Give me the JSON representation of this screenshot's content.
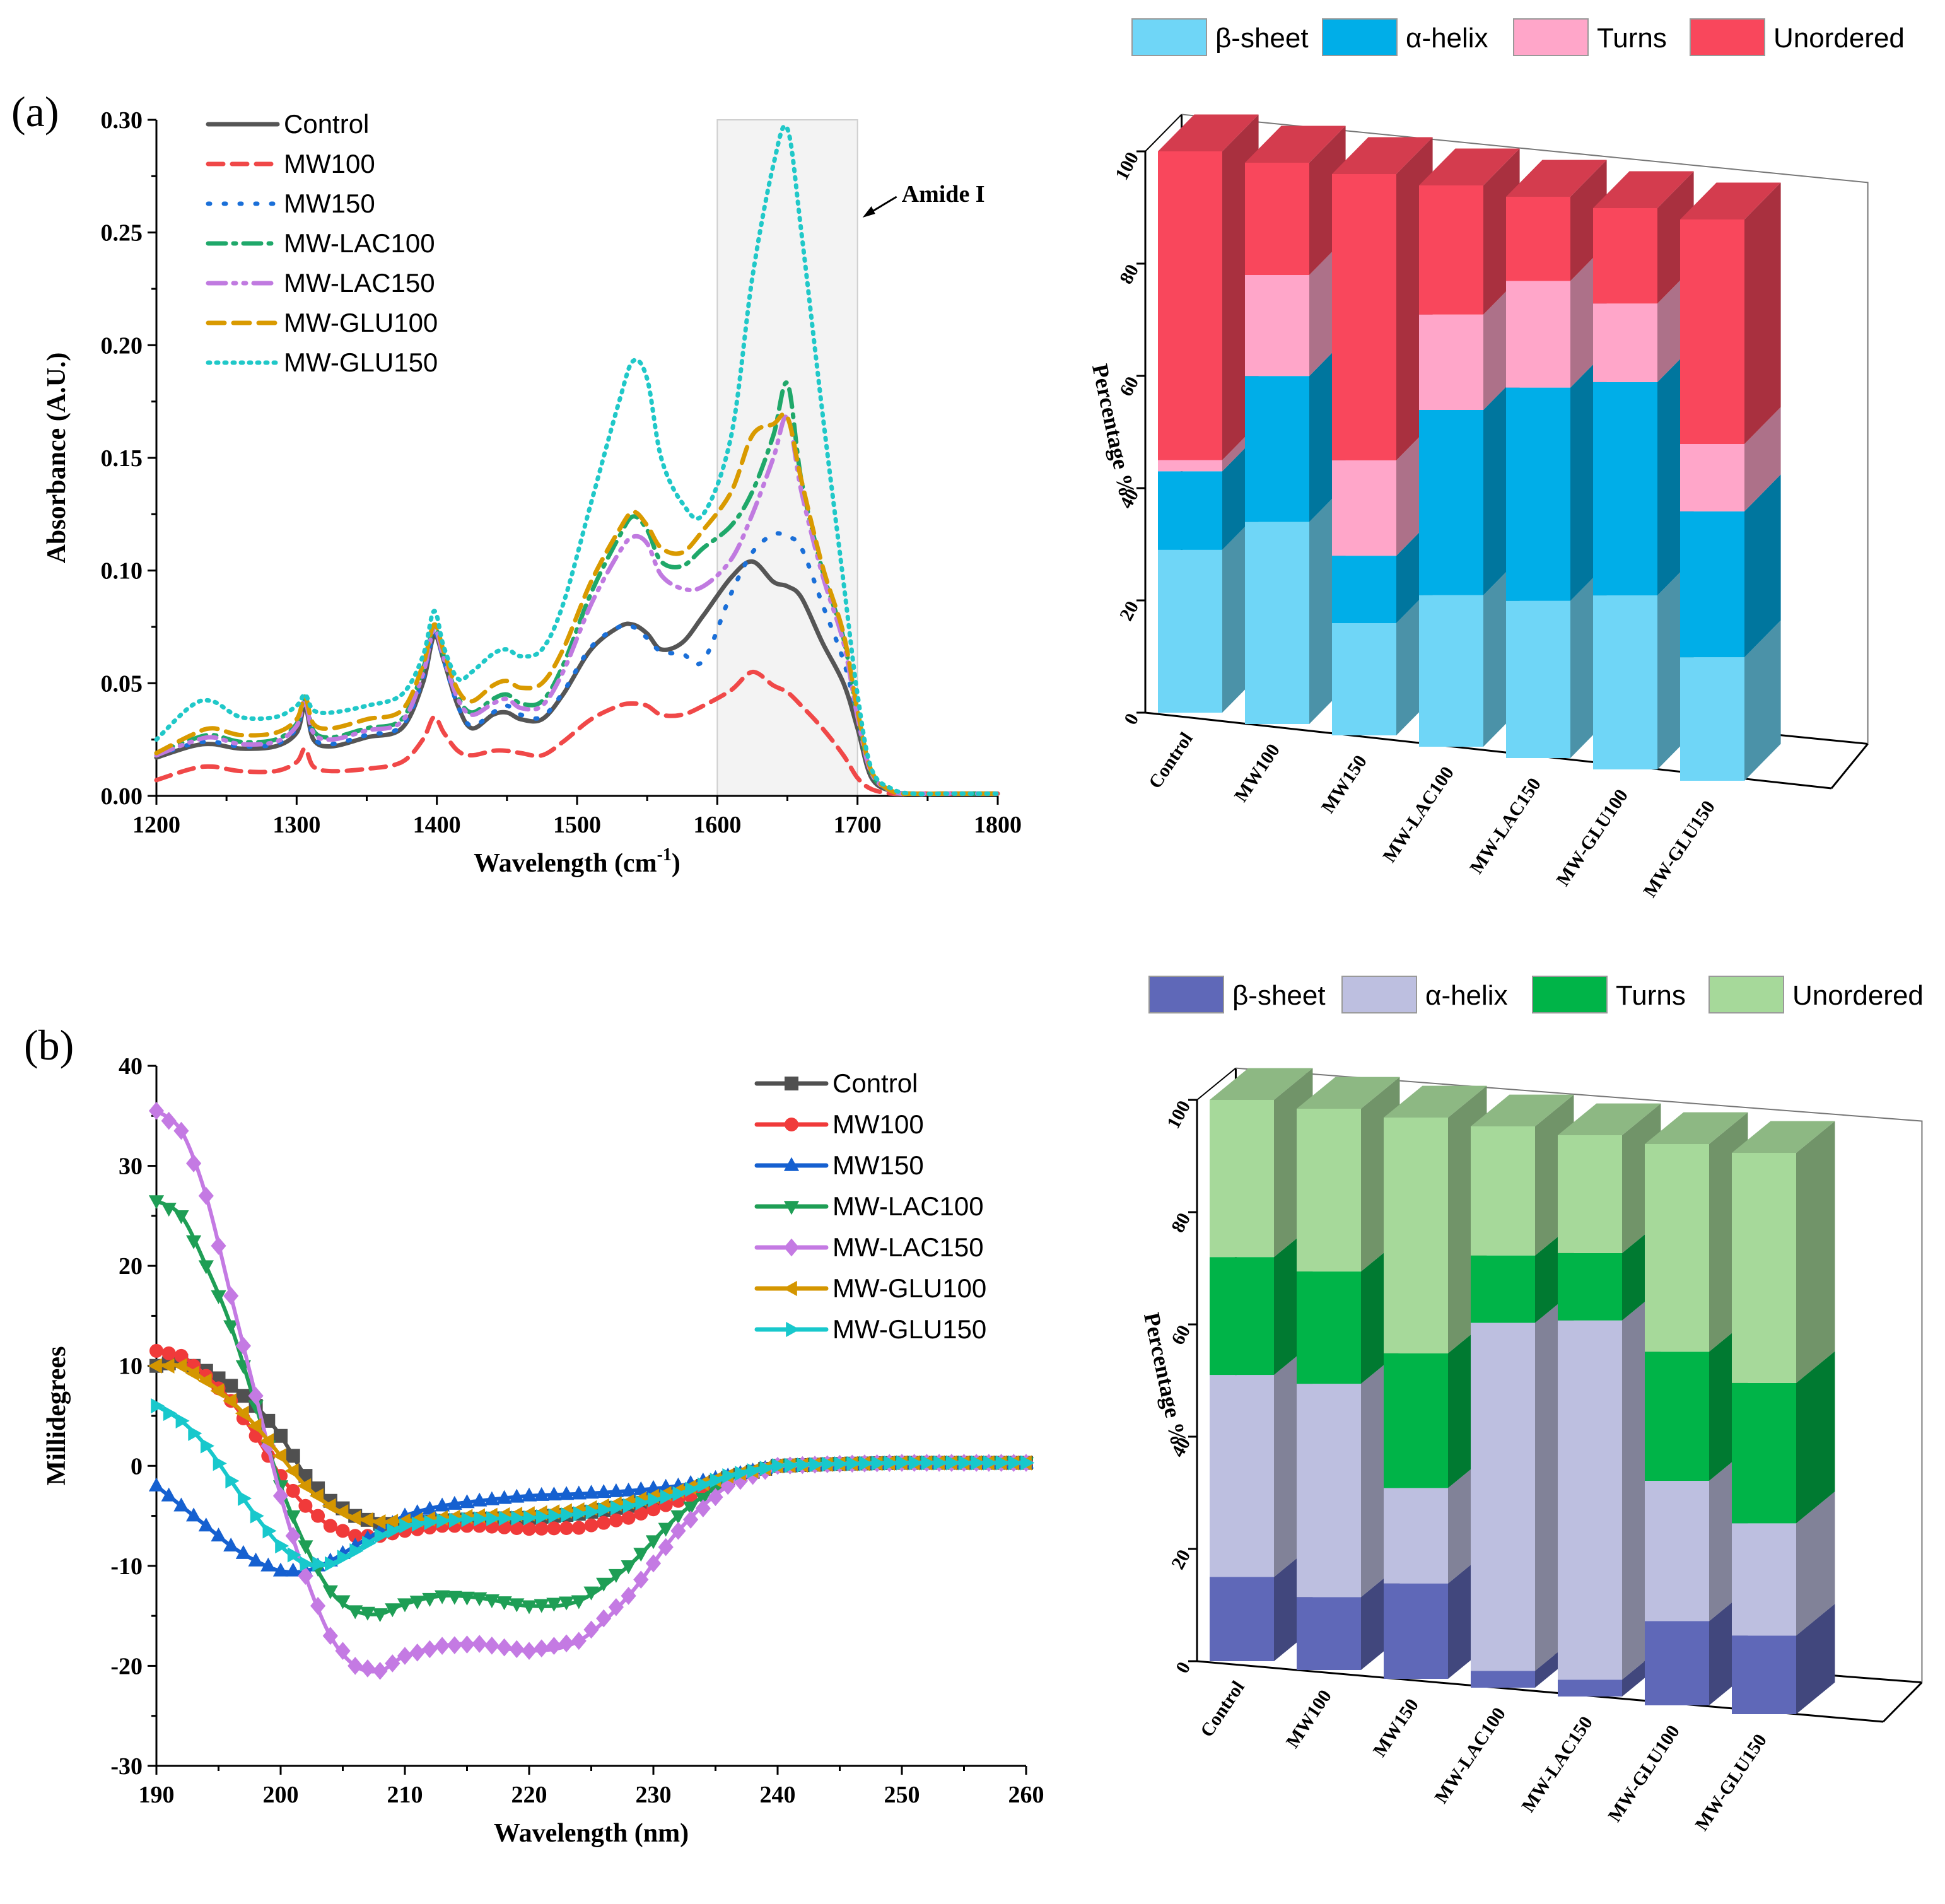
{
  "panels": {
    "a": "(a)",
    "b": "(b)"
  },
  "chart_data": [
    {
      "id": "ftir",
      "type": "line",
      "xlabel": "Wavelength (cm",
      "xlabel_sup": "-1",
      "xlabel_close": ")",
      "ylabel": "Absorbance (A.U.)",
      "xlim": [
        1200,
        1800
      ],
      "ylim": [
        0,
        0.3
      ],
      "xticks": [
        1200,
        1300,
        1400,
        1500,
        1600,
        1700,
        1800
      ],
      "xtick_labels": [
        "1200",
        "1300",
        "1400",
        "1500",
        "1600",
        "1700",
        "1800"
      ],
      "yticks": [
        0,
        0.05,
        0.1,
        0.15,
        0.2,
        0.25,
        0.3
      ],
      "ytick_labels": [
        "0.00",
        "0.05",
        "0.10",
        "0.15",
        "0.20",
        "0.25",
        "0.30"
      ],
      "highlight": {
        "x_range": [
          1600,
          1700
        ],
        "label": "Amide I"
      },
      "x": [
        1200,
        1225,
        1240,
        1260,
        1285,
        1300,
        1306,
        1312,
        1325,
        1350,
        1375,
        1390,
        1398,
        1405,
        1415,
        1425,
        1440,
        1450,
        1460,
        1475,
        1490,
        1510,
        1530,
        1540,
        1550,
        1560,
        1575,
        1590,
        1610,
        1625,
        1640,
        1650,
        1660,
        1675,
        1690,
        1700,
        1710,
        1725,
        1740,
        1760,
        1800
      ],
      "series": [
        {
          "name": "Control",
          "color": "#555555",
          "dash": "",
          "values": [
            0.017,
            0.022,
            0.023,
            0.021,
            0.022,
            0.028,
            0.04,
            0.025,
            0.022,
            0.026,
            0.03,
            0.05,
            0.071,
            0.06,
            0.04,
            0.03,
            0.036,
            0.037,
            0.034,
            0.034,
            0.045,
            0.065,
            0.075,
            0.076,
            0.072,
            0.065,
            0.068,
            0.08,
            0.097,
            0.104,
            0.095,
            0.093,
            0.088,
            0.068,
            0.05,
            0.03,
            0.008,
            0.002,
            0.001,
            0.001,
            0.001
          ]
        },
        {
          "name": "MW100",
          "color": "#f04848",
          "dash": "24,14",
          "values": [
            0.007,
            0.012,
            0.013,
            0.011,
            0.011,
            0.015,
            0.021,
            0.013,
            0.011,
            0.012,
            0.015,
            0.025,
            0.035,
            0.028,
            0.02,
            0.018,
            0.02,
            0.02,
            0.019,
            0.018,
            0.024,
            0.034,
            0.04,
            0.041,
            0.04,
            0.036,
            0.036,
            0.04,
            0.047,
            0.055,
            0.049,
            0.046,
            0.04,
            0.03,
            0.018,
            0.008,
            0.003,
            0.001,
            0.001,
            0.001,
            0.001
          ]
        },
        {
          "name": "MW150",
          "color": "#1a6fd8",
          "dash": "3,22",
          "values": [
            0.018,
            0.023,
            0.024,
            0.022,
            0.023,
            0.03,
            0.042,
            0.026,
            0.023,
            0.027,
            0.031,
            0.052,
            0.072,
            0.06,
            0.04,
            0.031,
            0.037,
            0.04,
            0.036,
            0.035,
            0.046,
            0.066,
            0.075,
            0.075,
            0.07,
            0.064,
            0.063,
            0.06,
            0.09,
            0.108,
            0.116,
            0.115,
            0.11,
            0.085,
            0.06,
            0.035,
            0.01,
            0.002,
            0.001,
            0.001,
            0.001
          ]
        },
        {
          "name": "MW-LAC100",
          "color": "#1fa86a",
          "dash": "28,12,4,12",
          "values": [
            0.019,
            0.025,
            0.027,
            0.024,
            0.025,
            0.032,
            0.044,
            0.029,
            0.026,
            0.03,
            0.034,
            0.056,
            0.075,
            0.062,
            0.044,
            0.037,
            0.043,
            0.045,
            0.041,
            0.042,
            0.058,
            0.09,
            0.115,
            0.124,
            0.118,
            0.104,
            0.102,
            0.11,
            0.12,
            0.135,
            0.16,
            0.183,
            0.14,
            0.1,
            0.07,
            0.036,
            0.01,
            0.002,
            0.001,
            0.001,
            0.001
          ]
        },
        {
          "name": "MW-LAC150",
          "color": "#c07ae0",
          "dash": "28,12,4,12,4,12",
          "values": [
            0.018,
            0.024,
            0.026,
            0.023,
            0.024,
            0.031,
            0.042,
            0.028,
            0.025,
            0.029,
            0.033,
            0.054,
            0.074,
            0.061,
            0.043,
            0.036,
            0.041,
            0.043,
            0.039,
            0.04,
            0.055,
            0.085,
            0.108,
            0.115,
            0.112,
            0.098,
            0.092,
            0.093,
            0.105,
            0.125,
            0.15,
            0.168,
            0.135,
            0.098,
            0.068,
            0.035,
            0.01,
            0.002,
            0.001,
            0.001,
            0.001
          ]
        },
        {
          "name": "MW-GLU100",
          "color": "#d99a00",
          "dash": "26,14",
          "values": [
            0.019,
            0.027,
            0.03,
            0.027,
            0.028,
            0.034,
            0.044,
            0.032,
            0.03,
            0.034,
            0.038,
            0.058,
            0.076,
            0.064,
            0.047,
            0.042,
            0.049,
            0.051,
            0.048,
            0.05,
            0.065,
            0.095,
            0.118,
            0.126,
            0.12,
            0.11,
            0.108,
            0.118,
            0.135,
            0.16,
            0.165,
            0.168,
            0.14,
            0.102,
            0.072,
            0.038,
            0.011,
            0.002,
            0.001,
            0.001,
            0.001
          ]
        },
        {
          "name": "MW-GLU150",
          "color": "#20c8c8",
          "dash": "3,10",
          "values": [
            0.025,
            0.04,
            0.042,
            0.035,
            0.035,
            0.04,
            0.045,
            0.038,
            0.037,
            0.04,
            0.045,
            0.062,
            0.082,
            0.066,
            0.052,
            0.055,
            0.063,
            0.065,
            0.062,
            0.065,
            0.085,
            0.13,
            0.175,
            0.193,
            0.185,
            0.15,
            0.13,
            0.125,
            0.16,
            0.23,
            0.28,
            0.296,
            0.25,
            0.17,
            0.095,
            0.045,
            0.012,
            0.003,
            0.001,
            0.001,
            0.001
          ]
        }
      ]
    },
    {
      "id": "ftir_bars",
      "type": "bar",
      "stacked": true,
      "ylabel": "Percentage %",
      "ylim": [
        0,
        100
      ],
      "yticks": [
        0,
        20,
        40,
        60,
        80,
        100
      ],
      "categories": [
        "Control",
        "MW100",
        "MW150",
        "MW-LAC100",
        "MW-LAC150",
        "MW-GLU100",
        "MW-GLU150"
      ],
      "series": [
        {
          "name": "β-sheet",
          "color": "#6fd6f7",
          "values": [
            29,
            36,
            20,
            27,
            28,
            31,
            22
          ]
        },
        {
          "name": "α-helix",
          "color": "#00aee8",
          "values": [
            14,
            26,
            12,
            33,
            38,
            38,
            26
          ]
        },
        {
          "name": "Turns",
          "color": "#ffa6c9",
          "values": [
            2,
            18,
            17,
            17,
            19,
            14,
            12
          ]
        },
        {
          "name": "Unordered",
          "color": "#f9475c",
          "values": [
            55,
            20,
            51,
            23,
            15,
            17,
            40
          ]
        }
      ]
    },
    {
      "id": "cd",
      "type": "line",
      "xlabel": "Wavelength (nm)",
      "ylabel": "Millidegrees",
      "xlim": [
        190,
        260
      ],
      "ylim": [
        -30,
        40
      ],
      "xticks": [
        190,
        200,
        210,
        220,
        230,
        240,
        250,
        260
      ],
      "xtick_labels": [
        "190",
        "200",
        "210",
        "220",
        "230",
        "240",
        "250",
        "260"
      ],
      "yticks": [
        -30,
        -20,
        -10,
        0,
        10,
        20,
        30,
        40
      ],
      "ytick_labels": [
        "-30",
        "-20",
        "-10",
        "0",
        "10",
        "20",
        "30",
        "40"
      ],
      "x": [
        190,
        192,
        194,
        196,
        198,
        200,
        202,
        204,
        206,
        208,
        210,
        213,
        216,
        220,
        224,
        228,
        232,
        236,
        240,
        245,
        250,
        255,
        260
      ],
      "series": [
        {
          "name": "Control",
          "color": "#505050",
          "marker": "square",
          "values": [
            10,
            10.5,
            9.5,
            8,
            6,
            3,
            -1,
            -3.5,
            -5,
            -5.8,
            -5.8,
            -5.5,
            -5.3,
            -5.2,
            -4.8,
            -4,
            -2.8,
            -1.2,
            0,
            0.2,
            0.3,
            0.3,
            0.3
          ]
        },
        {
          "name": "MW100",
          "color": "#f03a3a",
          "marker": "circle",
          "values": [
            11.5,
            11,
            9,
            6.5,
            3,
            -1,
            -4,
            -6,
            -7,
            -7,
            -6.5,
            -6,
            -6,
            -6.3,
            -6.2,
            -5.2,
            -3.5,
            -1.5,
            0,
            0.2,
            0.3,
            0.3,
            0.3
          ]
        },
        {
          "name": "MW150",
          "color": "#1560d0",
          "marker": "triangle-up",
          "values": [
            -2,
            -4,
            -6,
            -8,
            -9.5,
            -10.5,
            -10.5,
            -9.5,
            -8,
            -6.5,
            -5,
            -4,
            -3.5,
            -3,
            -2.8,
            -2.5,
            -2,
            -1,
            0,
            0.2,
            0.3,
            0.3,
            0.3
          ]
        },
        {
          "name": "MW-LAC100",
          "color": "#1e9e55",
          "marker": "triangle-down",
          "values": [
            26.5,
            25,
            20,
            14,
            6,
            -2,
            -8,
            -12.5,
            -14.5,
            -14.8,
            -13.8,
            -13,
            -13.2,
            -14,
            -13.5,
            -10,
            -5,
            -1.5,
            0,
            0.2,
            0.3,
            0.3,
            0.3
          ]
        },
        {
          "name": "MW-LAC150",
          "color": "#c47ae3",
          "marker": "diamond",
          "values": [
            35.5,
            33.5,
            27,
            17,
            7,
            -3,
            -11,
            -17,
            -20,
            -20.5,
            -19,
            -18,
            -17.8,
            -18.5,
            -17.5,
            -13,
            -6.5,
            -2,
            0,
            0.2,
            0.3,
            0.3,
            0.3
          ]
        },
        {
          "name": "MW-GLU100",
          "color": "#d49600",
          "marker": "triangle-left",
          "values": [
            10,
            10,
            8.5,
            6.5,
            4,
            1,
            -2,
            -4,
            -5.2,
            -5.6,
            -5.5,
            -5.2,
            -5,
            -4.8,
            -4.4,
            -3.6,
            -2.5,
            -1,
            0,
            0.2,
            0.3,
            0.3,
            0.3
          ]
        },
        {
          "name": "MW-GLU150",
          "color": "#18c8cc",
          "marker": "triangle-right",
          "values": [
            6,
            4.5,
            2,
            -1.5,
            -5,
            -8,
            -9.8,
            -9.8,
            -8.5,
            -7,
            -6,
            -5.5,
            -5.3,
            -5.2,
            -4.8,
            -4,
            -2.8,
            -1,
            0,
            0.2,
            0.3,
            0.3,
            0.3
          ]
        }
      ]
    },
    {
      "id": "cd_bars",
      "type": "bar",
      "stacked": true,
      "ylabel": "Percentage %",
      "ylim": [
        0,
        100
      ],
      "yticks": [
        0,
        20,
        40,
        60,
        80,
        100
      ],
      "categories": [
        "Control",
        "MW100",
        "MW150",
        "MW-LAC100",
        "MW-LAC150",
        "MW-GLU100",
        "MW-GLU150"
      ],
      "series": [
        {
          "name": "β-sheet",
          "color": "#5f68b8",
          "values": [
            15,
            13,
            17,
            3,
            3,
            15,
            14
          ]
        },
        {
          "name": "α-helix",
          "color": "#bdbfe0",
          "values": [
            36,
            38,
            17,
            62,
            64,
            25,
            20
          ]
        },
        {
          "name": "Turns",
          "color": "#00b448",
          "values": [
            21,
            20,
            24,
            12,
            12,
            23,
            25
          ]
        },
        {
          "name": "Unordered",
          "color": "#a6d99a",
          "values": [
            28,
            29,
            42,
            23,
            21,
            37,
            41
          ]
        }
      ]
    }
  ]
}
